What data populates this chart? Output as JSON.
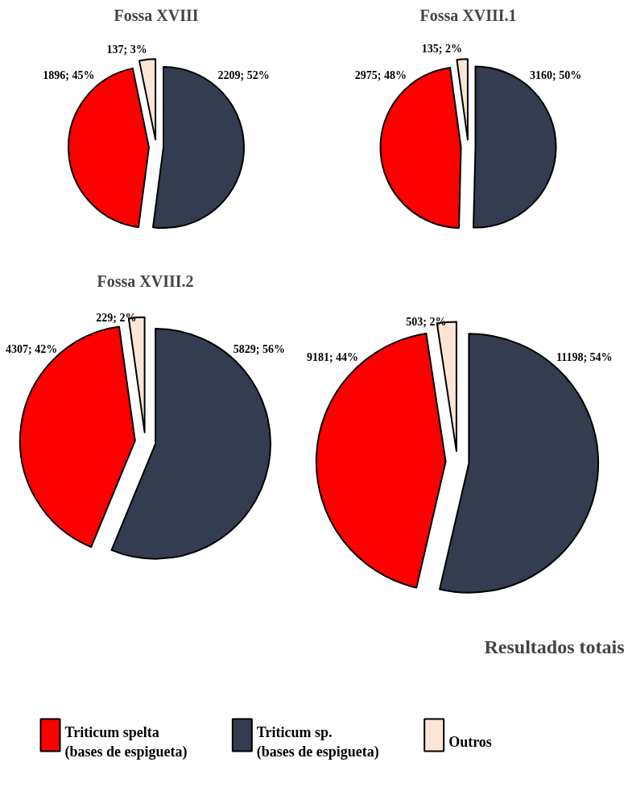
{
  "chart_data": [
    {
      "type": "pie",
      "title": "Fossa XVIII",
      "categories": [
        "Triticum spelta\n(bases de espigueta)",
        "Triticum sp.\n(bases de espigueta)",
        "Outros"
      ],
      "values": [
        1896,
        2209,
        137
      ],
      "value_labels": [
        "1896; 45%",
        "2209; 52%",
        "137; 3%"
      ],
      "colors": [
        "#ff0000",
        "#333d4f",
        "#fbe5d6"
      ],
      "legend": "bottom"
    },
    {
      "type": "pie",
      "title": "Fossa XVIII.1",
      "values": [
        2975,
        3160,
        135
      ],
      "value_labels": [
        "2975; 48%",
        "3160; 50%",
        "135; 2%"
      ],
      "colors": [
        "#ff0000",
        "#333d4f",
        "#fbe5d6"
      ]
    },
    {
      "type": "pie",
      "title": "Fossa XVIII.2",
      "values": [
        4307,
        5829,
        229
      ],
      "value_labels": [
        "4307; 42%",
        "5829; 56%",
        "229; 2%"
      ],
      "colors": [
        "#ff0000",
        "#333d4f",
        "#fbe5d6"
      ]
    },
    {
      "type": "pie",
      "title": "Resultados totais",
      "values": [
        9181,
        11198,
        503
      ],
      "value_labels": [
        "9181; 44%",
        "11198; 54%",
        "503; 2%"
      ],
      "colors": [
        "#ff0000",
        "#333d4f",
        "#fbe5d6"
      ]
    }
  ]
}
